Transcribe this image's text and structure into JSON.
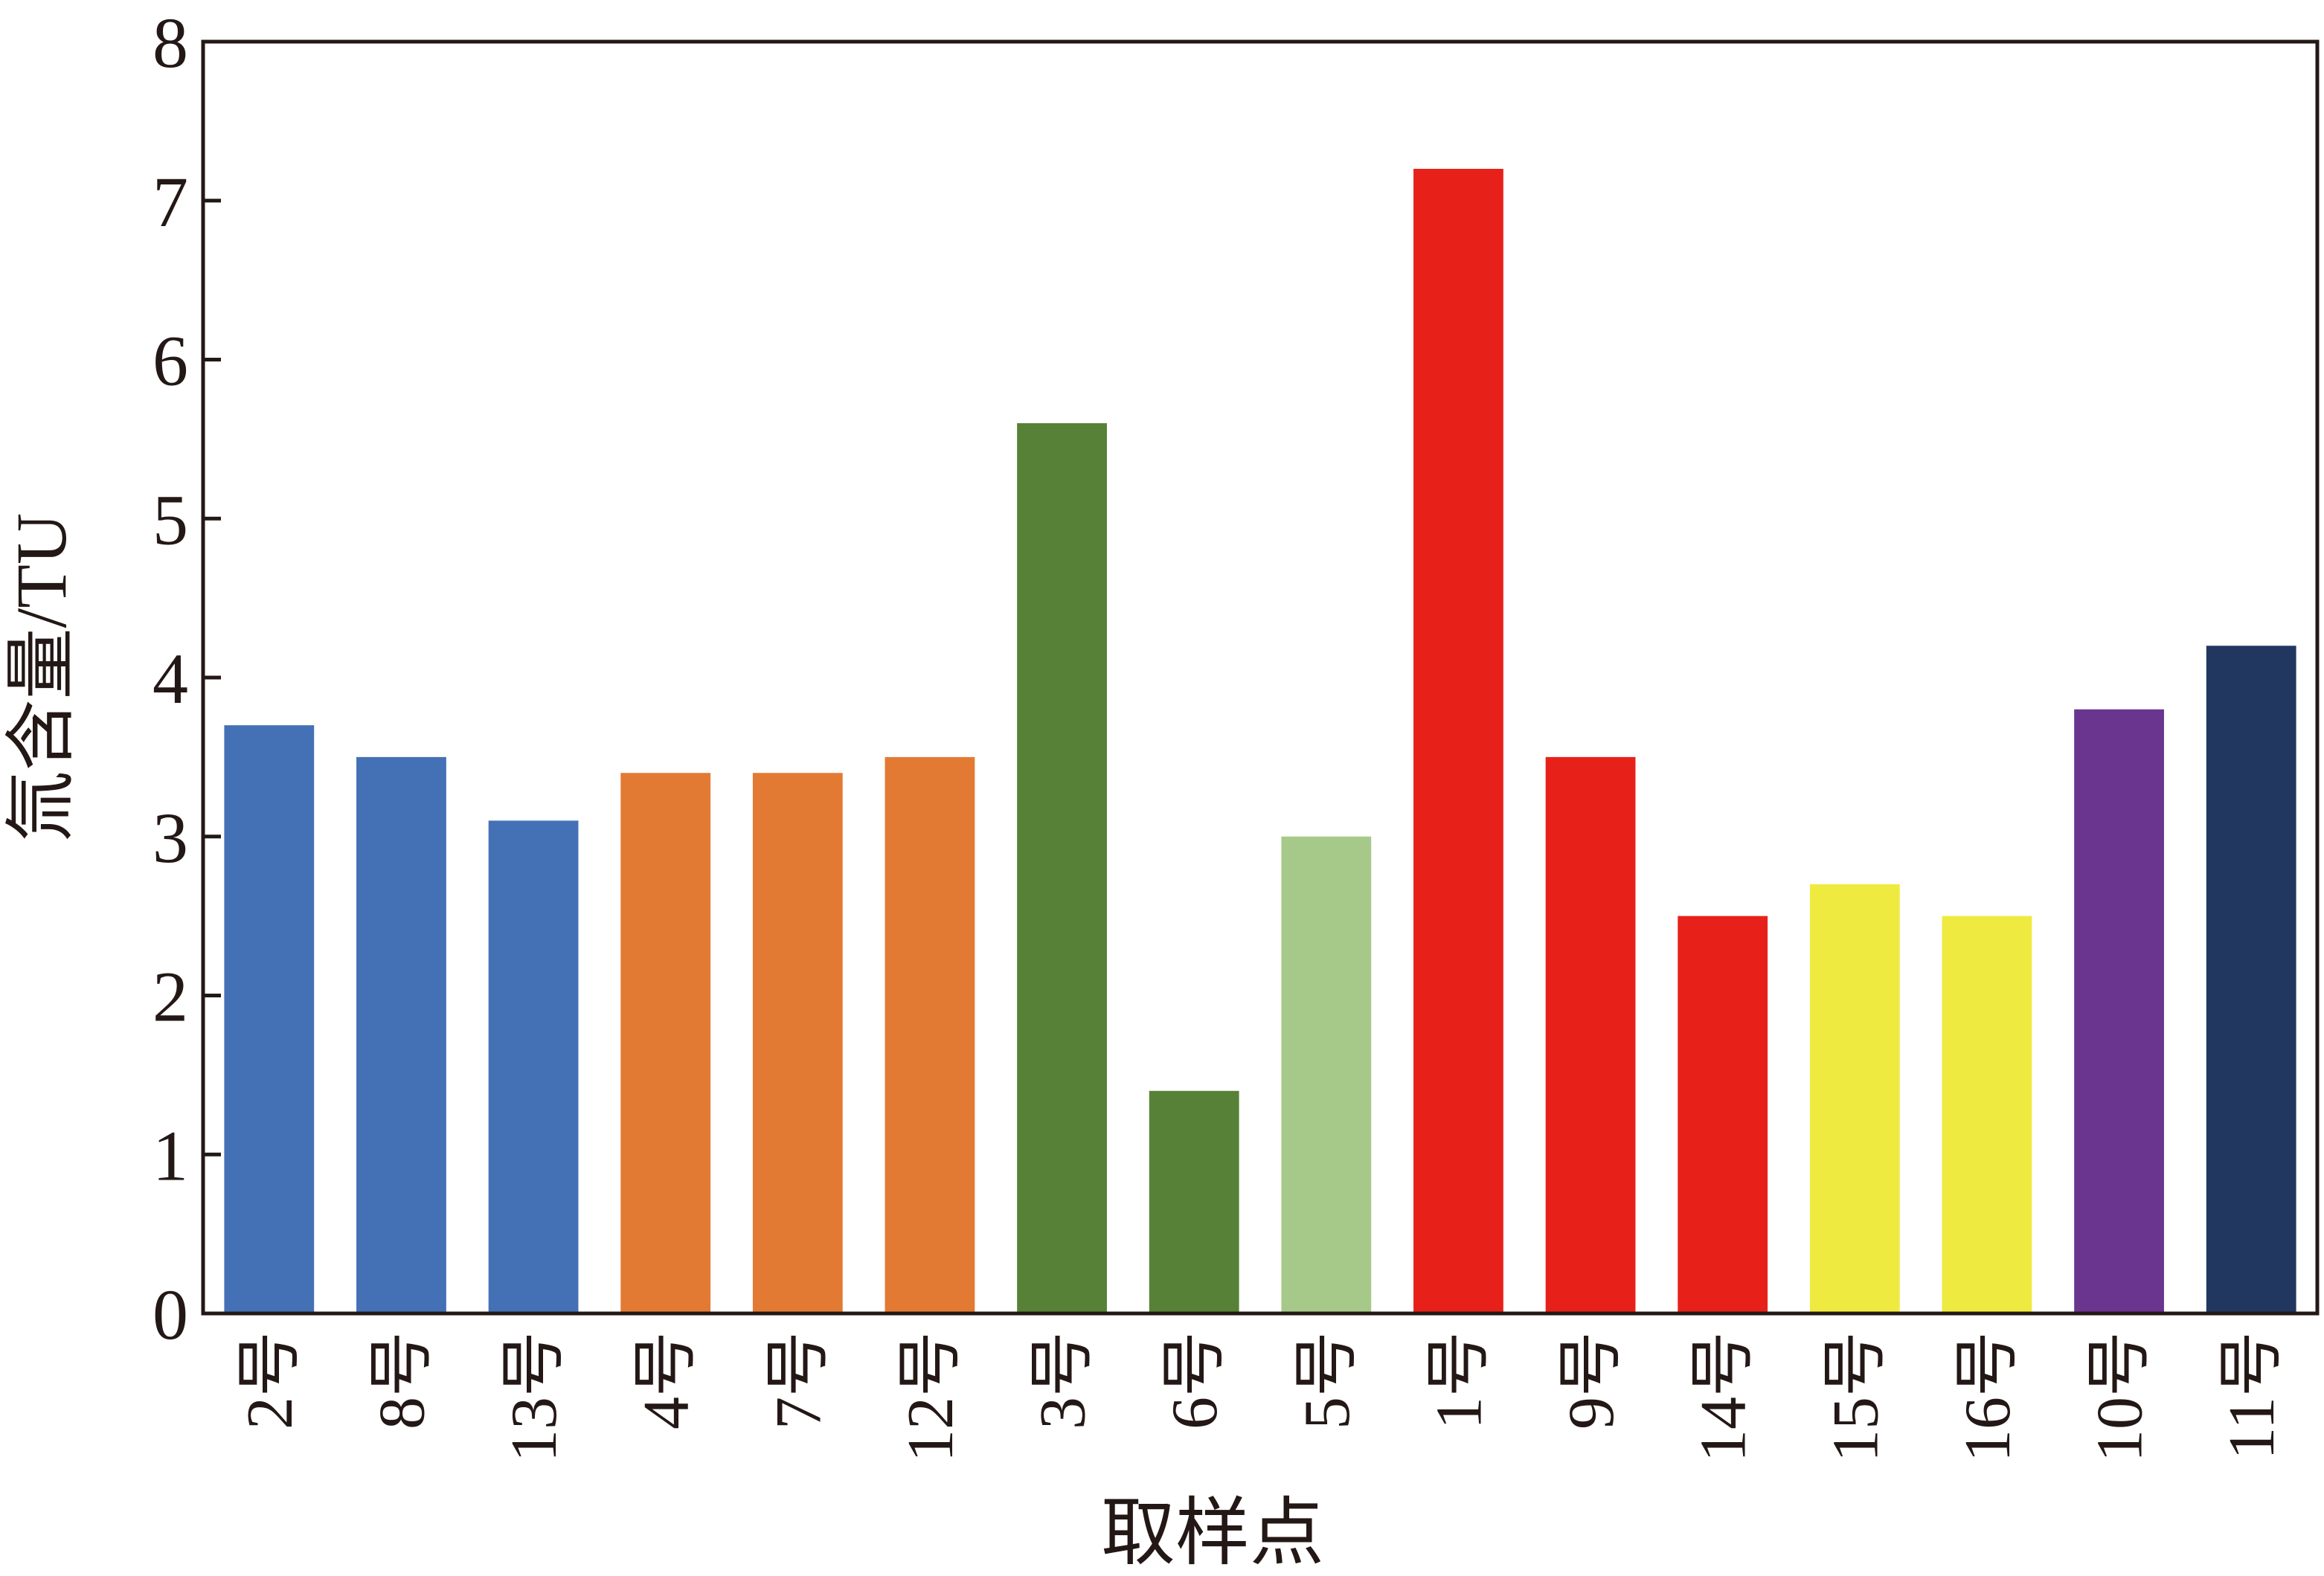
{
  "chart_data": {
    "type": "bar",
    "x_label": "取样点",
    "y_label": "氚含量/TU",
    "categories": [
      "2号",
      "8号",
      "13号",
      "4号",
      "7号",
      "12号",
      "3号",
      "6号",
      "5号",
      "1号",
      "9号",
      "14号",
      "15号",
      "16号",
      "10号",
      "11号"
    ],
    "values": [
      3.7,
      3.5,
      3.1,
      3.4,
      3.4,
      3.5,
      5.6,
      1.4,
      3.0,
      7.2,
      3.5,
      2.5,
      2.7,
      2.5,
      3.8,
      4.2
    ],
    "colors": [
      "#4470b6",
      "#4470b6",
      "#4470b6",
      "#e27a34",
      "#e27a34",
      "#e27a34",
      "#568137",
      "#568137",
      "#a6c98a",
      "#e7211a",
      "#e7211a",
      "#e7211a",
      "#efea3f",
      "#efea3f",
      "#6a358f",
      "#213760"
    ],
    "ylim": [
      0,
      8
    ],
    "yticks": [
      0,
      1,
      2,
      3,
      4,
      5,
      6,
      7,
      8
    ],
    "grid": false
  }
}
